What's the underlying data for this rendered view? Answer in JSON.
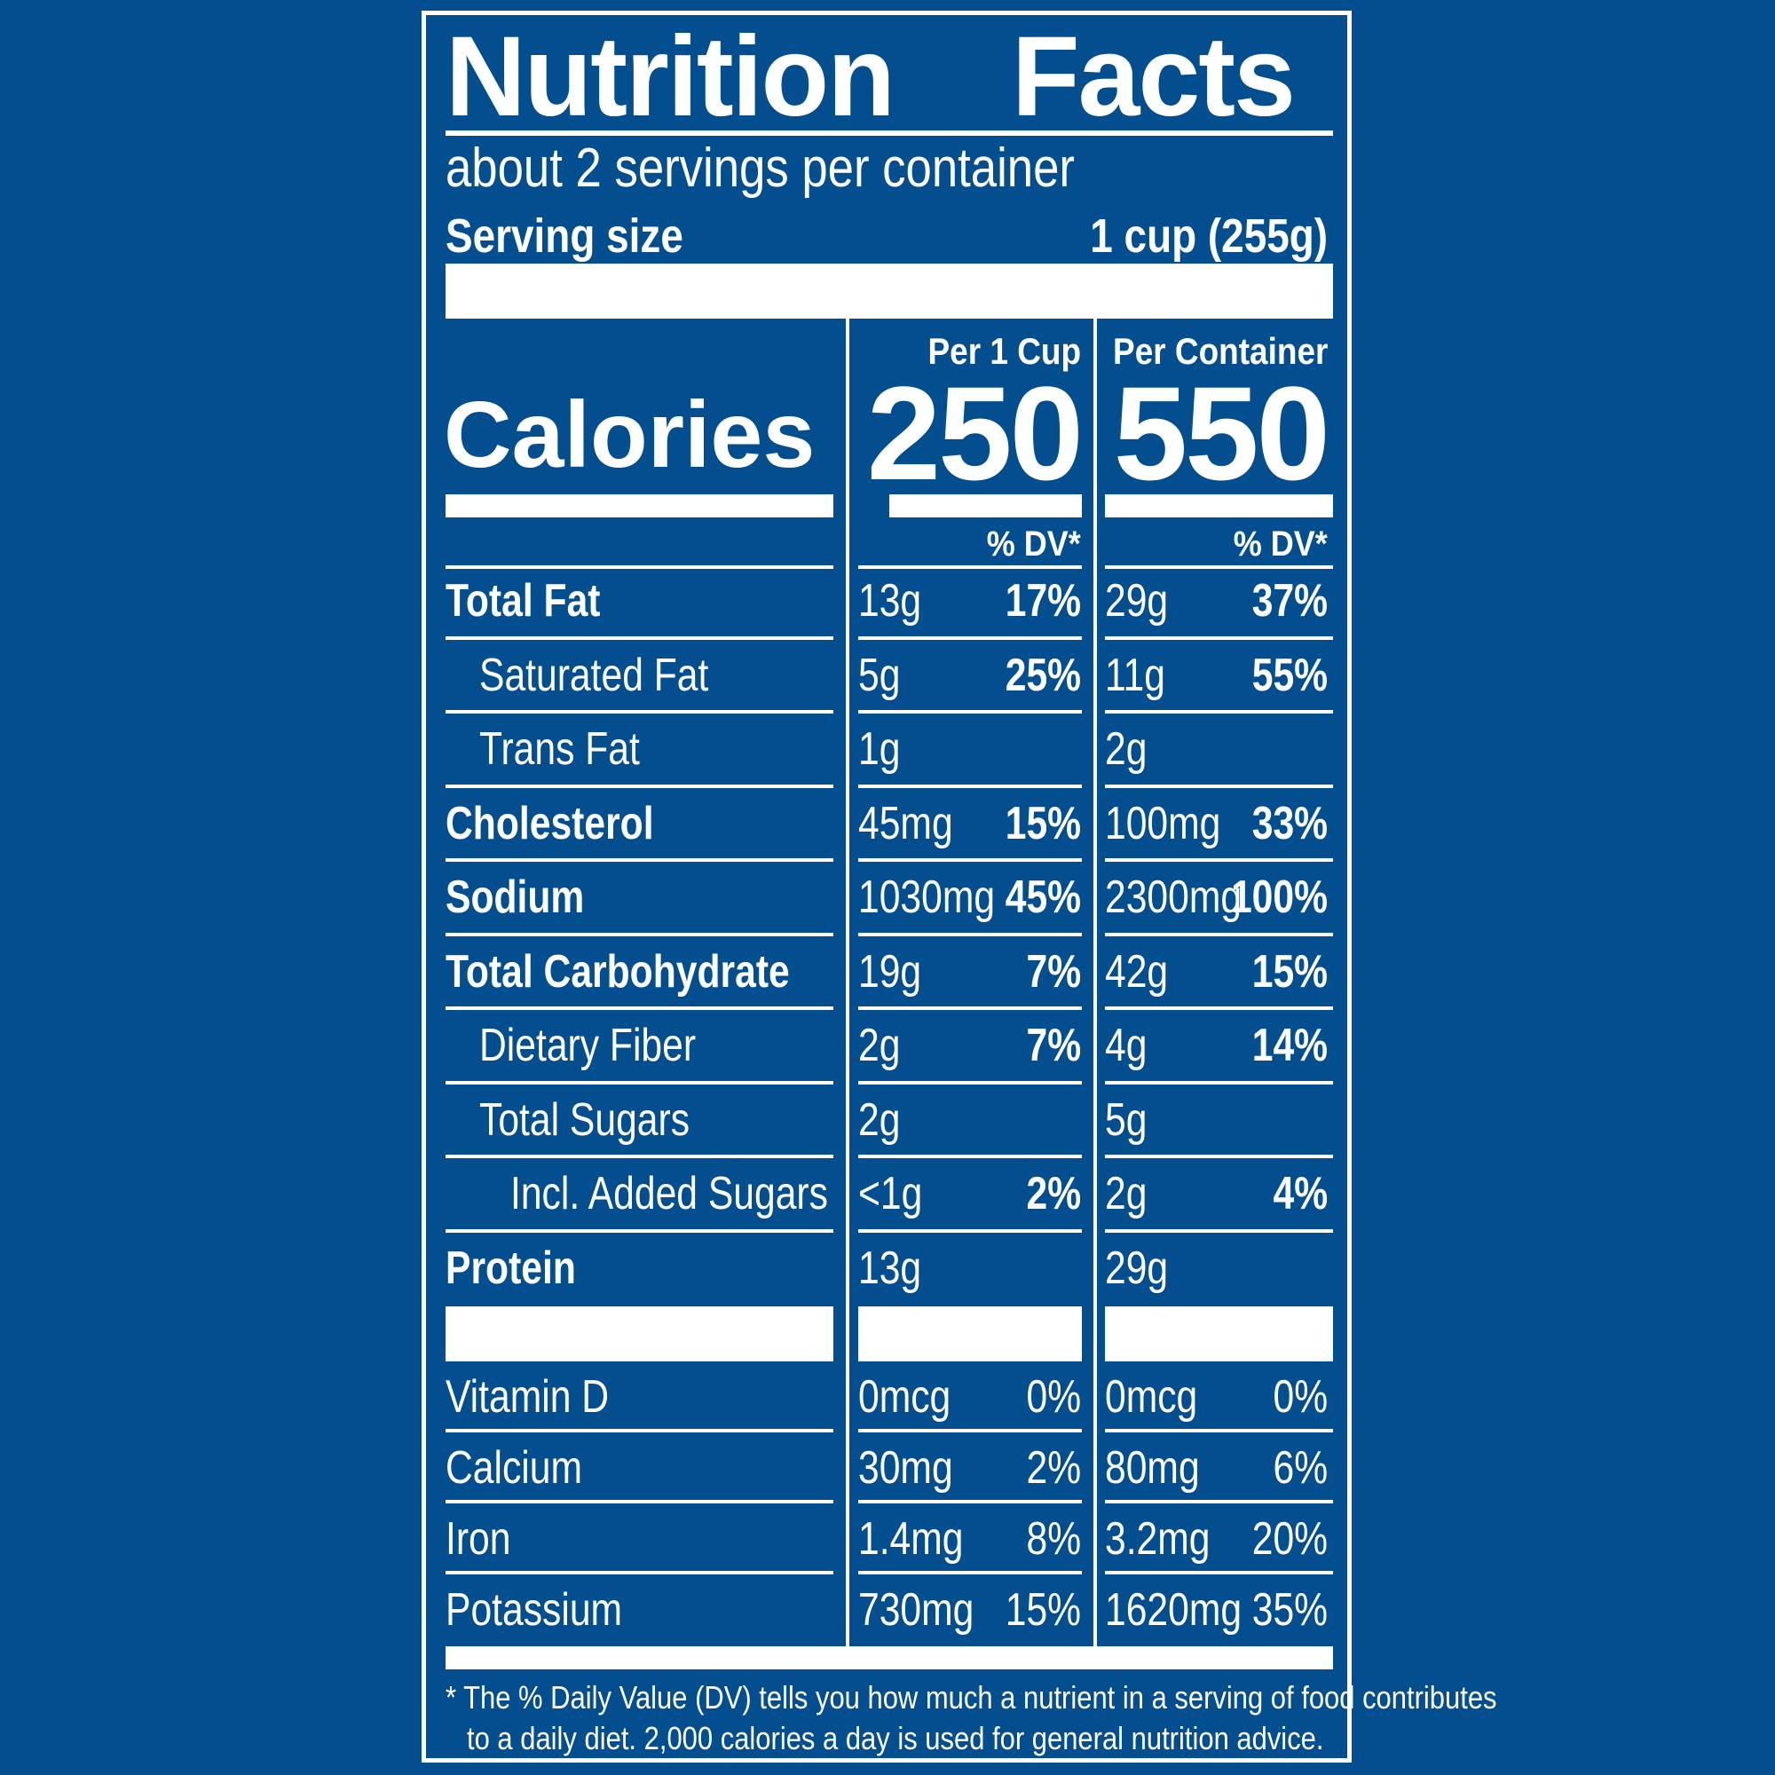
{
  "title_left": "Nutrition",
  "title_right": "Facts",
  "servings_per_container": "about 2 servings per container",
  "serving_size_label": "Serving size",
  "serving_size_value": "1 cup (255g)",
  "calories_label": "Calories",
  "columns": [
    {
      "header": "Per 1 Cup",
      "calories": "250",
      "dv_header": "% DV*"
    },
    {
      "header": "Per Container",
      "calories": "550",
      "dv_header": "% DV*"
    }
  ],
  "nutrients": [
    {
      "label": "Total Fat",
      "bold": true,
      "indent": 0,
      "v1": "13g",
      "p1": "17%",
      "v2": "29g",
      "p2": "37%"
    },
    {
      "label": "Saturated Fat",
      "bold": false,
      "indent": 1,
      "v1": "5g",
      "p1": "25%",
      "v2": "11g",
      "p2": "55%"
    },
    {
      "label": "Trans Fat",
      "bold": false,
      "indent": 1,
      "v1": "1g",
      "p1": "",
      "v2": "2g",
      "p2": ""
    },
    {
      "label": "Cholesterol",
      "bold": true,
      "indent": 0,
      "v1": "45mg",
      "p1": "15%",
      "v2": "100mg",
      "p2": "33%"
    },
    {
      "label": "Sodium",
      "bold": true,
      "indent": 0,
      "v1": "1030mg",
      "p1": "45%",
      "v2": "2300mg",
      "p2": "100%"
    },
    {
      "label": "Total Carbohydrate",
      "bold": true,
      "indent": 0,
      "v1": "19g",
      "p1": "7%",
      "v2": "42g",
      "p2": "15%"
    },
    {
      "label": "Dietary Fiber",
      "bold": false,
      "indent": 1,
      "v1": "2g",
      "p1": "7%",
      "v2": "4g",
      "p2": "14%"
    },
    {
      "label": "Total Sugars",
      "bold": false,
      "indent": 1,
      "v1": "2g",
      "p1": "",
      "v2": "5g",
      "p2": ""
    },
    {
      "label": "Incl. Added Sugars",
      "bold": false,
      "indent": 2,
      "v1": "<1g",
      "p1": "2%",
      "v2": "2g",
      "p2": "4%"
    },
    {
      "label": "Protein",
      "bold": true,
      "indent": 0,
      "v1": "13g",
      "p1": "",
      "v2": "29g",
      "p2": ""
    }
  ],
  "vitamins": [
    {
      "label": "Vitamin D",
      "v1": "0mcg",
      "p1": "0%",
      "v2": "0mcg",
      "p2": "0%"
    },
    {
      "label": "Calcium",
      "v1": "30mg",
      "p1": "2%",
      "v2": "80mg",
      "p2": "6%"
    },
    {
      "label": "Iron",
      "v1": "1.4mg",
      "p1": "8%",
      "v2": "3.2mg",
      "p2": "20%"
    },
    {
      "label": "Potassium",
      "v1": "730mg",
      "p1": "15%",
      "v2": "1620mg",
      "p2": "35%"
    }
  ],
  "footnote_line1": "* The % Daily Value (DV) tells you how much a nutrient in a serving of food contributes",
  "footnote_line2": "to a daily diet. 2,000 calories a day is used for general nutrition advice."
}
